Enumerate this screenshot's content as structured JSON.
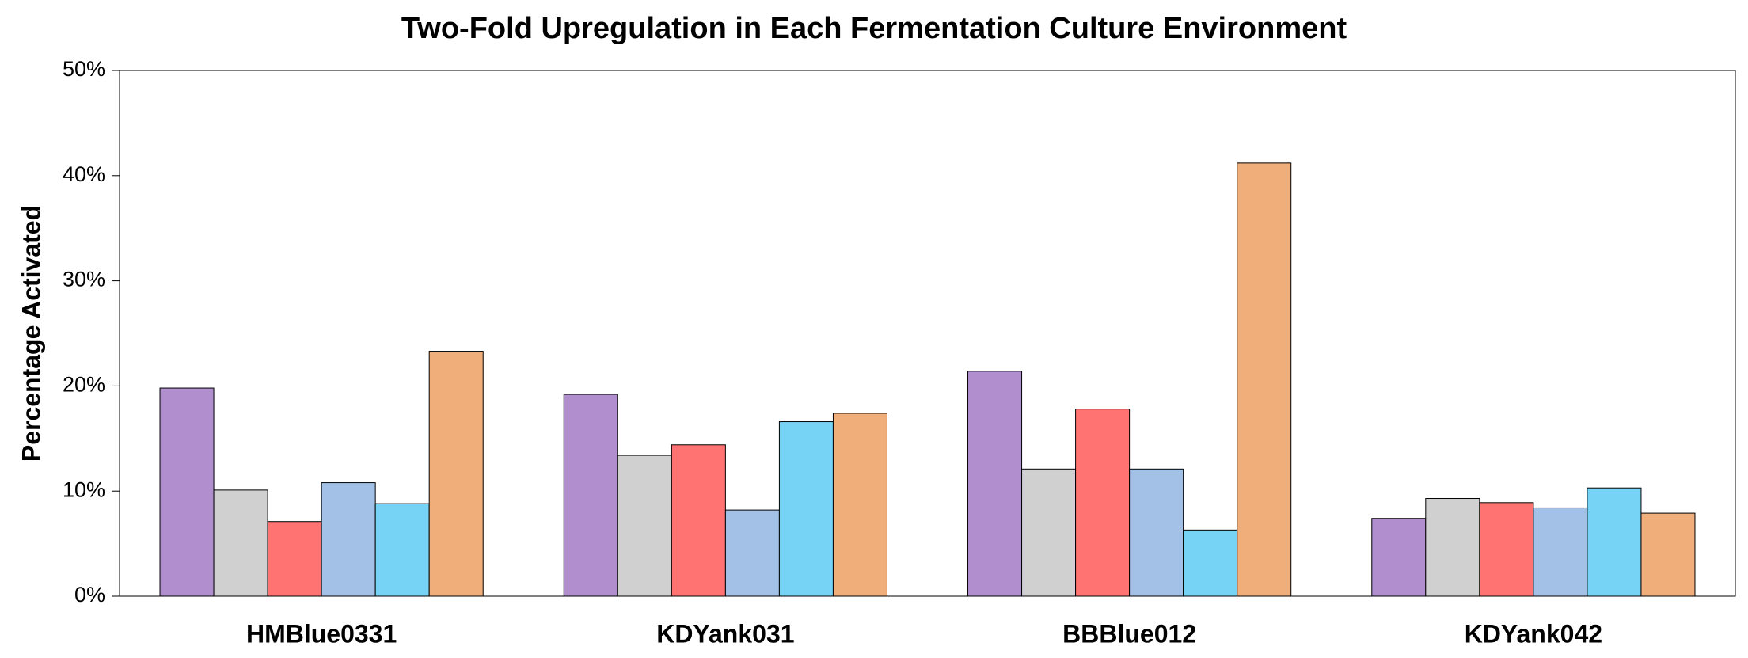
{
  "chart_data": {
    "type": "bar",
    "title": "Two-Fold Upregulation in Each Fermentation Culture Environment",
    "y_label": "Percentage Activated",
    "categories": [
      "HMBlue0331",
      "KDYank031",
      "BBBlue012",
      "KDYank042"
    ],
    "series": [
      {
        "color": "#b18fcf",
        "values": [
          19.8,
          19.2,
          21.4,
          7.4
        ]
      },
      {
        "color": "#d0d0d0",
        "values": [
          10.1,
          13.4,
          12.1,
          9.3
        ]
      },
      {
        "color": "#ff7373",
        "values": [
          7.1,
          14.4,
          17.8,
          8.9
        ]
      },
      {
        "color": "#a3c1e6",
        "values": [
          10.8,
          8.2,
          12.1,
          8.4
        ]
      },
      {
        "color": "#76d3f6",
        "values": [
          8.8,
          16.6,
          6.3,
          10.3
        ]
      },
      {
        "color": "#f0ae7a",
        "values": [
          23.3,
          17.4,
          41.2,
          7.9
        ]
      }
    ],
    "ylim": [
      0,
      50
    ],
    "yticks": [
      {
        "value": 0,
        "label": "0%"
      },
      {
        "value": 10,
        "label": "10%"
      },
      {
        "value": 20,
        "label": "20%"
      },
      {
        "value": 30,
        "label": "30%"
      },
      {
        "value": 40,
        "label": "40%"
      },
      {
        "value": 50,
        "label": "50%"
      }
    ],
    "grid": false
  }
}
